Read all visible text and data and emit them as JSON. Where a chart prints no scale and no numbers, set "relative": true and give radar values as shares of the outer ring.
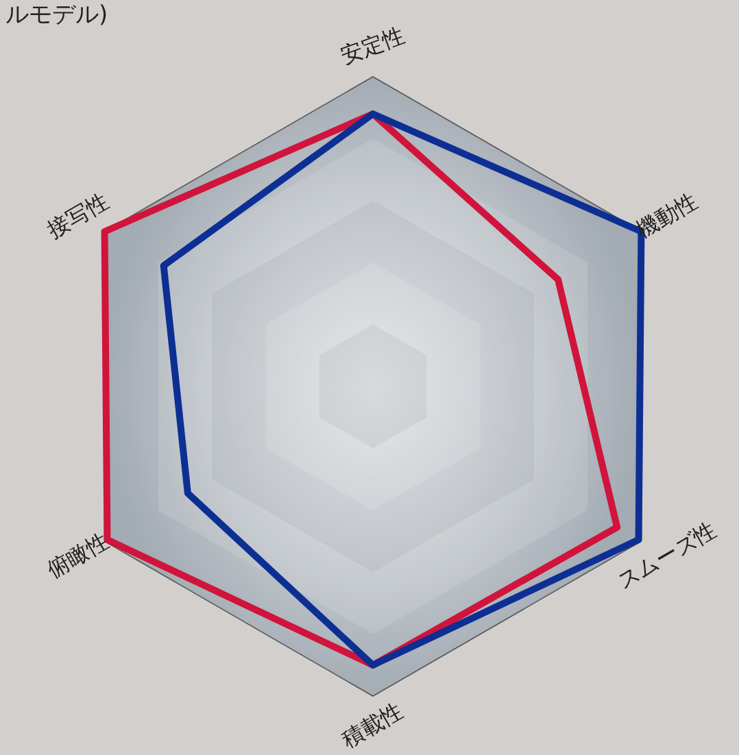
{
  "chart_data": {
    "type": "radar",
    "relative": true,
    "grid": true,
    "annotations": [
      "ルモデル)"
    ],
    "categories": [
      "安定性",
      "機動性",
      "スムーズ性",
      "積載性",
      "俯瞰性",
      "接写性"
    ],
    "series": [
      {
        "color": "#d0143c",
        "values": [
          0.88,
          0.69,
          0.91,
          0.9,
          0.99,
          1.0
        ]
      },
      {
        "color": "#0d2f94",
        "values": [
          0.88,
          1.0,
          0.99,
          0.9,
          0.69,
          0.78
        ]
      }
    ]
  }
}
